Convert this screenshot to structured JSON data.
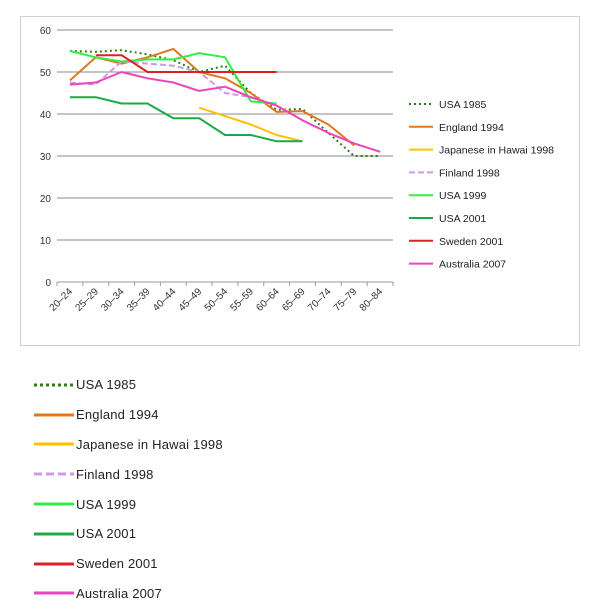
{
  "chart_data": {
    "type": "line",
    "title": "",
    "xlabel": "",
    "ylabel": "",
    "ylim": [
      0,
      60
    ],
    "yticks": [
      0,
      10,
      20,
      30,
      40,
      50,
      60
    ],
    "grid": true,
    "legend_position": "right",
    "categories": [
      "20–24",
      "25–29",
      "30–34",
      "35–39",
      "40–44",
      "45–49",
      "50–54",
      "55–59",
      "60–64",
      "65–69",
      "70–74",
      "75–79",
      "80–84"
    ],
    "series": [
      {
        "name": "USA 1985",
        "color": "#2e7d18",
        "dash": "dotted",
        "values": [
          55,
          54.8,
          55.2,
          54.2,
          52.8,
          50,
          51.5,
          45,
          41,
          41.2,
          35.5,
          30,
          30
        ]
      },
      {
        "name": "England 1994",
        "color": "#e07820",
        "dash": "solid",
        "values": [
          48,
          53.5,
          52,
          53.5,
          55.5,
          50,
          48.5,
          45,
          40.5,
          40.7,
          37.5,
          32.5,
          null
        ]
      },
      {
        "name": "Japanese in Hawai 1998",
        "color": "#ffc000",
        "dash": "solid",
        "values": [
          null,
          null,
          null,
          null,
          null,
          41.5,
          39.5,
          37.5,
          35,
          33.5,
          null,
          null,
          null
        ]
      },
      {
        "name": "Finland 1998",
        "color": "#cc99ee",
        "dash": "dashed",
        "values": [
          47.5,
          47,
          52.5,
          52,
          51.5,
          50,
          45,
          44,
          42,
          null,
          null,
          null,
          null
        ]
      },
      {
        "name": "USA 1999",
        "color": "#33ee44",
        "dash": "solid",
        "values": [
          55,
          53.5,
          52.5,
          53,
          53,
          54.5,
          53.5,
          43,
          42.5,
          null,
          null,
          null,
          null
        ]
      },
      {
        "name": "USA 2001",
        "color": "#1aaa44",
        "dash": "solid",
        "values": [
          44,
          44,
          42.5,
          42.5,
          39,
          39,
          35,
          35,
          33.5,
          33.5,
          null,
          null,
          null
        ]
      },
      {
        "name": "Sweden 2001",
        "color": "#e02020",
        "dash": "solid",
        "values": [
          null,
          54,
          54,
          50,
          50,
          50,
          50,
          50,
          50,
          null,
          null,
          null,
          null
        ]
      },
      {
        "name": "Australia 2007",
        "color": "#ee44bb",
        "dash": "solid",
        "values": [
          47,
          47.5,
          50,
          48.5,
          47.5,
          45.5,
          46.5,
          44,
          42,
          38.5,
          35.5,
          33,
          31
        ]
      }
    ]
  }
}
